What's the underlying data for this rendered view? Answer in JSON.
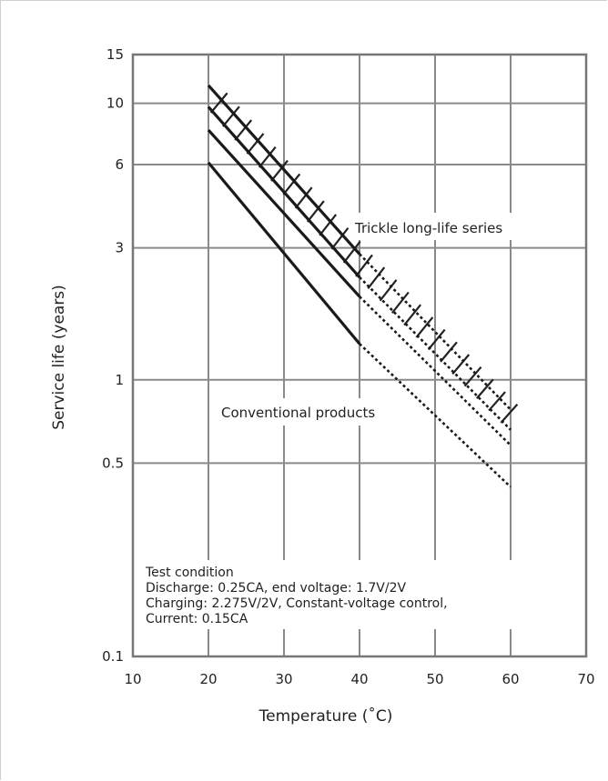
{
  "chart_data": {
    "type": "line",
    "title": "",
    "xlabel": "Temperature (˚C)",
    "ylabel": "Service life (years)",
    "x_scale": "linear",
    "y_scale": "log",
    "xlim": [
      10,
      70
    ],
    "ylim": [
      0.1,
      15
    ],
    "x_ticks": [
      "10",
      "20",
      "30",
      "40",
      "50",
      "60",
      "70"
    ],
    "y_ticks": [
      {
        "value": 0.1,
        "label": "0.1"
      },
      {
        "value": 0.5,
        "label": "0.5"
      },
      {
        "value": 1,
        "label": "1"
      },
      {
        "value": 3,
        "label": "3"
      },
      {
        "value": 6,
        "label": "6"
      },
      {
        "value": 10,
        "label": "10"
      },
      {
        "value": 15,
        "label": "15"
      }
    ],
    "grid": true,
    "series": [
      {
        "group": "trickle",
        "points": [
          [
            20,
            11.6
          ],
          [
            40,
            2.85
          ],
          [
            60,
            0.78
          ]
        ],
        "dashed_from_x": 40
      },
      {
        "group": "trickle",
        "points": [
          [
            20,
            9.7
          ],
          [
            40,
            2.35
          ],
          [
            60,
            0.66
          ]
        ],
        "dashed_from_x": 40
      },
      {
        "group": "conventional",
        "points": [
          [
            20,
            8.0
          ],
          [
            40,
            2.0
          ],
          [
            60,
            0.58
          ]
        ],
        "dashed_from_x": 40
      },
      {
        "group": "conventional",
        "points": [
          [
            20,
            6.1
          ],
          [
            40,
            1.35
          ],
          [
            60,
            0.41
          ]
        ],
        "dashed_from_x": 40
      }
    ],
    "hatched_band": "trickle",
    "annotations": {
      "trickle": "Trickle long-life series",
      "conventional": "Conventional products"
    },
    "note": [
      "Test condition",
      "Discharge: 0.25CA, end voltage: 1.7V/2V",
      "Charging: 2.275V/2V, Constant-voltage control,",
      "Current: 0.15CA"
    ]
  }
}
